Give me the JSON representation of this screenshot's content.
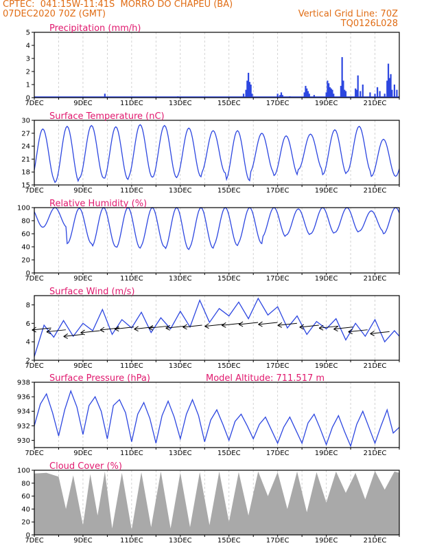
{
  "header": {
    "station": "CPTEC:  041:15W-11:41S  MORRO DO CHAPEU (BA)",
    "run": "07DEC2020 70Z (GMT)",
    "grid": "Vertical Grid Line: 70Z",
    "code": "TQ0126L028"
  },
  "colors": {
    "line": "#2c46e0",
    "bar": "#2c46e0",
    "cloud": "#a9a9a9",
    "title": "#e0196e",
    "header": "#e06c14"
  },
  "x_ticks": [
    "7DEC",
    "9DEC",
    "11DEC",
    "13DEC",
    "15DEC",
    "17DEC",
    "19DEC",
    "21DEC"
  ],
  "chart_data": [
    {
      "type": "bar",
      "title": "Precipitation (mm/h)",
      "ylim": [
        0,
        5
      ],
      "yticks": [
        0,
        1,
        2,
        3,
        4,
        5
      ],
      "x_range": [
        0,
        15
      ],
      "x": [
        2.9,
        5.9,
        8.6,
        8.7,
        8.75,
        8.8,
        8.85,
        8.9,
        8.95,
        10.0,
        10.1,
        10.15,
        10.2,
        10.5,
        11.1,
        11.15,
        11.2,
        11.25,
        11.3,
        11.5,
        12.0,
        12.05,
        12.1,
        12.15,
        12.2,
        12.25,
        12.3,
        12.6,
        12.65,
        12.7,
        12.75,
        12.8,
        13.2,
        13.25,
        13.3,
        13.4,
        13.5,
        13.8,
        14.0,
        14.1,
        14.2,
        14.4,
        14.5,
        14.55,
        14.6,
        14.65,
        14.7,
        14.8,
        14.9
      ],
      "values": [
        0.3,
        0.1,
        0.3,
        0.6,
        1.3,
        1.9,
        1.2,
        1.0,
        0.3,
        0.3,
        0.2,
        0.4,
        0.2,
        0.1,
        0.4,
        0.9,
        0.7,
        0.5,
        0.3,
        0.2,
        0.4,
        1.3,
        1.1,
        0.8,
        0.7,
        0.6,
        0.3,
        0.9,
        3.1,
        1.3,
        0.6,
        0.5,
        0.7,
        0.6,
        1.7,
        0.5,
        1.0,
        0.4,
        0.3,
        0.8,
        0.5,
        0.3,
        1.3,
        2.6,
        1.5,
        1.8,
        0.6,
        1.0,
        0.6
      ]
    },
    {
      "type": "line",
      "title": "Surface Temperature (nC)",
      "ylim": [
        15,
        30
      ],
      "yticks": [
        15,
        18,
        21,
        24,
        27,
        30
      ],
      "x_range": [
        0,
        15
      ],
      "amp_max": [
        26.5,
        28.0,
        28.6,
        28.8,
        28.5,
        29.0,
        28.8,
        28.2,
        27.6,
        27.6,
        27.0,
        26.4,
        26.8,
        27.8,
        28.6,
        25.6
      ],
      "amp_min": [
        16.0,
        15.6,
        16.6,
        16.3,
        16.8,
        16.7,
        16.9,
        17.8,
        16.0,
        17.9,
        17.2,
        18.6,
        17.4,
        18.0,
        17.0
      ]
    },
    {
      "type": "line",
      "title": "Relative Humidity (%)",
      "ylim": [
        0,
        100
      ],
      "yticks": [
        0,
        20,
        40,
        60,
        80,
        100
      ],
      "x_range": [
        0,
        15
      ],
      "amp_max": [
        100,
        100,
        99,
        100,
        100,
        100,
        100,
        100,
        100,
        100,
        100,
        98,
        100,
        100,
        95,
        100
      ],
      "amp_min": [
        70,
        45,
        40,
        38,
        40,
        36,
        38,
        42,
        45,
        55,
        58,
        60,
        62,
        64,
        60
      ]
    },
    {
      "type": "line",
      "title": "Surface Wind (m/s)",
      "ylim": [
        2,
        9
      ],
      "yticks": [
        2,
        4,
        6,
        8
      ],
      "x_range": [
        0,
        15
      ],
      "x": [
        0,
        0.4,
        0.8,
        1.2,
        1.6,
        2.0,
        2.4,
        2.8,
        3.2,
        3.6,
        4.0,
        4.4,
        4.8,
        5.2,
        5.6,
        6.0,
        6.4,
        6.8,
        7.2,
        7.6,
        8.0,
        8.4,
        8.8,
        9.2,
        9.6,
        10.0,
        10.4,
        10.8,
        11.2,
        11.6,
        12.0,
        12.4,
        12.8,
        13.2,
        13.6,
        14.0,
        14.4,
        14.8,
        15.0
      ],
      "values": [
        2.4,
        5.8,
        4.5,
        6.3,
        4.6,
        6.0,
        5.2,
        7.5,
        4.8,
        6.4,
        5.5,
        7.2,
        5.0,
        6.6,
        5.4,
        7.3,
        5.6,
        8.5,
        6.1,
        7.6,
        6.8,
        8.3,
        6.5,
        8.7,
        6.9,
        7.8,
        5.5,
        6.8,
        4.8,
        6.2,
        5.4,
        6.5,
        4.2,
        6.0,
        4.6,
        6.4,
        4.0,
        5.2,
        4.6
      ],
      "arrows_x": [
        0.3,
        0.9,
        1.6,
        2.3,
        3.1,
        3.7,
        4.5,
        5.1,
        5.8,
        6.5,
        7.4,
        8.1,
        8.8,
        9.6,
        10.4,
        11.3,
        12.1,
        12.7,
        13.3,
        14.2
      ],
      "arrows_y": [
        5.5,
        5.3,
        4.8,
        5.2,
        5.5,
        5.6,
        5.6,
        5.7,
        5.7,
        5.8,
        5.9,
        6.0,
        6.1,
        6.1,
        6.0,
        5.8,
        5.7,
        5.6,
        5.3,
        5.1
      ]
    },
    {
      "type": "line",
      "title": "Surface Pressure (hPa)",
      "annotation": "Model Altitude: 711.517  m",
      "ylim": [
        929,
        938
      ],
      "yticks": [
        930,
        932,
        934,
        936,
        938
      ],
      "x_range": [
        0,
        15
      ],
      "x": [
        0,
        0.25,
        0.5,
        0.75,
        1.0,
        1.25,
        1.5,
        1.75,
        2.0,
        2.25,
        2.5,
        2.75,
        3.0,
        3.25,
        3.5,
        3.75,
        4.0,
        4.25,
        4.5,
        4.75,
        5.0,
        5.25,
        5.5,
        5.75,
        6.0,
        6.25,
        6.5,
        6.75,
        7.0,
        7.25,
        7.5,
        7.75,
        8.0,
        8.25,
        8.5,
        8.75,
        9.0,
        9.25,
        9.5,
        9.75,
        10.0,
        10.25,
        10.5,
        10.75,
        11.0,
        11.25,
        11.5,
        11.75,
        12.0,
        12.25,
        12.5,
        12.75,
        13.0,
        13.25,
        13.5,
        13.75,
        14.0,
        14.25,
        14.5,
        14.75,
        15.0
      ],
      "values": [
        932.0,
        935.0,
        936.4,
        933.8,
        930.6,
        934.2,
        936.8,
        934.6,
        930.8,
        934.8,
        936.0,
        934.0,
        930.2,
        934.8,
        935.6,
        933.8,
        929.8,
        933.6,
        935.2,
        933.0,
        929.6,
        933.4,
        935.4,
        933.2,
        930.2,
        933.6,
        935.6,
        933.4,
        929.8,
        932.8,
        934.2,
        932.2,
        930.0,
        932.6,
        933.6,
        932.0,
        930.2,
        932.2,
        933.2,
        931.4,
        929.6,
        931.8,
        933.2,
        931.4,
        929.6,
        932.4,
        933.6,
        931.6,
        929.4,
        931.8,
        933.4,
        931.2,
        929.2,
        932.2,
        934.0,
        931.8,
        929.6,
        932.0,
        934.2,
        931.0,
        931.8
      ]
    },
    {
      "type": "area",
      "title": "Cloud Cover (%)",
      "ylim": [
        0,
        100
      ],
      "yticks": [
        0,
        20,
        40,
        60,
        80,
        100
      ],
      "x_range": [
        0,
        15
      ],
      "x": [
        0,
        0.5,
        1.0,
        1.3,
        1.6,
        2.0,
        2.3,
        2.6,
        2.9,
        3.2,
        3.6,
        4.0,
        4.4,
        4.8,
        5.2,
        5.6,
        6.0,
        6.4,
        6.8,
        7.2,
        7.6,
        8.0,
        8.4,
        8.8,
        9.2,
        9.6,
        10.0,
        10.4,
        10.8,
        11.2,
        11.6,
        12.0,
        12.4,
        12.8,
        13.2,
        13.6,
        14.0,
        14.4,
        14.8,
        15.0
      ],
      "values": [
        95,
        96,
        90,
        40,
        92,
        15,
        94,
        30,
        98,
        10,
        96,
        8,
        97,
        12,
        98,
        10,
        96,
        12,
        97,
        15,
        98,
        20,
        97,
        30,
        98,
        60,
        97,
        40,
        98,
        35,
        97,
        50,
        98,
        65,
        96,
        55,
        99,
        70,
        98,
        96
      ]
    }
  ]
}
